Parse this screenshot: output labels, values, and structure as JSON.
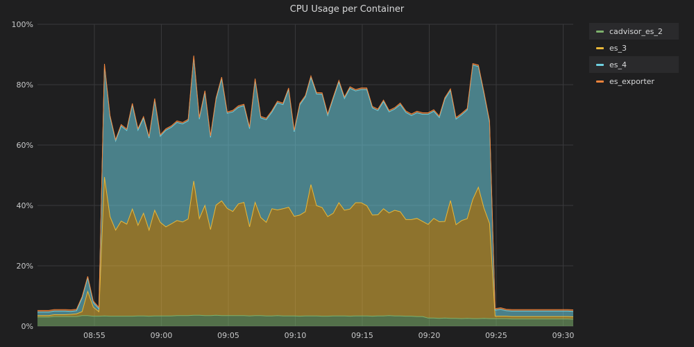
{
  "panel": {
    "title": "CPU Usage per Container"
  },
  "chart_data": {
    "type": "area",
    "stacked": true,
    "title": "CPU Usage per Container",
    "xlabel": "",
    "ylabel": "",
    "y_unit": "%",
    "ylim": [
      0,
      100
    ],
    "yticks": [
      "0%",
      "20%",
      "40%",
      "60%",
      "80%",
      "100%"
    ],
    "xlim": [
      "08:50:45",
      "09:30:45"
    ],
    "xticks": [
      "08:55",
      "09:00",
      "09:05",
      "09:10",
      "09:15",
      "09:20",
      "09:25",
      "09:30"
    ],
    "grid": true,
    "legend": "right",
    "time_step_seconds": 25,
    "x": [
      "08:50:45",
      "08:51:10",
      "08:51:35",
      "08:52:00",
      "08:52:25",
      "08:52:50",
      "08:53:15",
      "08:53:40",
      "08:54:05",
      "08:54:30",
      "08:54:55",
      "08:55:20",
      "08:55:45",
      "08:56:10",
      "08:56:35",
      "08:57:00",
      "08:57:25",
      "08:57:50",
      "08:58:15",
      "08:58:40",
      "08:59:05",
      "08:59:30",
      "08:59:55",
      "09:00:20",
      "09:00:45",
      "09:01:10",
      "09:01:35",
      "09:02:00",
      "09:02:25",
      "09:02:50",
      "09:03:15",
      "09:03:40",
      "09:04:05",
      "09:04:30",
      "09:04:55",
      "09:05:20",
      "09:05:45",
      "09:06:10",
      "09:06:35",
      "09:07:00",
      "09:07:25",
      "09:07:50",
      "09:08:15",
      "09:08:40",
      "09:09:05",
      "09:09:30",
      "09:09:55",
      "09:10:20",
      "09:10:45",
      "09:11:10",
      "09:11:35",
      "09:12:00",
      "09:12:25",
      "09:12:50",
      "09:13:15",
      "09:13:40",
      "09:14:05",
      "09:14:30",
      "09:14:55",
      "09:15:20",
      "09:15:45",
      "09:16:10",
      "09:16:35",
      "09:17:00",
      "09:17:25",
      "09:17:50",
      "09:18:15",
      "09:18:40",
      "09:19:05",
      "09:19:30",
      "09:19:55",
      "09:20:20",
      "09:20:45",
      "09:21:10",
      "09:21:35",
      "09:22:00",
      "09:22:25",
      "09:22:50",
      "09:23:15",
      "09:23:40",
      "09:24:05",
      "09:24:30",
      "09:24:55",
      "09:25:20",
      "09:25:45",
      "09:26:10",
      "09:26:35",
      "09:27:00",
      "09:27:25",
      "09:27:50",
      "09:28:15",
      "09:28:40",
      "09:29:05",
      "09:29:30",
      "09:29:55",
      "09:30:20",
      "09:30:45"
    ],
    "series": [
      {
        "name": "cadvisor_es_2",
        "color": "#7eb26d",
        "values": [
          3.0,
          3.0,
          3.0,
          3.2,
          3.2,
          3.2,
          3.2,
          3.2,
          3.5,
          3.5,
          3.3,
          3.3,
          3.4,
          3.3,
          3.3,
          3.3,
          3.3,
          3.3,
          3.4,
          3.4,
          3.3,
          3.4,
          3.4,
          3.4,
          3.4,
          3.5,
          3.5,
          3.5,
          3.6,
          3.6,
          3.5,
          3.5,
          3.6,
          3.5,
          3.5,
          3.5,
          3.5,
          3.5,
          3.4,
          3.5,
          3.5,
          3.4,
          3.4,
          3.5,
          3.4,
          3.4,
          3.4,
          3.3,
          3.4,
          3.4,
          3.4,
          3.3,
          3.3,
          3.4,
          3.4,
          3.4,
          3.3,
          3.4,
          3.4,
          3.4,
          3.3,
          3.4,
          3.4,
          3.5,
          3.4,
          3.4,
          3.3,
          3.3,
          3.2,
          3.2,
          2.7,
          2.7,
          2.6,
          2.7,
          2.6,
          2.6,
          2.5,
          2.6,
          2.5,
          2.5,
          2.6,
          2.5,
          2.5,
          2.5,
          2.5,
          2.4,
          2.4,
          2.4,
          2.4,
          2.4,
          2.4,
          2.4,
          2.4,
          2.4,
          2.4,
          2.4,
          2.3
        ]
      },
      {
        "name": "es_3",
        "color": "#eab839",
        "values": [
          0.5,
          0.5,
          0.5,
          0.6,
          0.6,
          0.6,
          0.7,
          0.9,
          1.3,
          8.0,
          3.0,
          1.5,
          46.0,
          33.0,
          28.5,
          31.5,
          30.5,
          35.5,
          30.0,
          34.0,
          28.5,
          35.0,
          31.0,
          29.5,
          30.5,
          31.5,
          31.0,
          32.0,
          44.5,
          32.0,
          36.5,
          28.5,
          36.5,
          38.0,
          35.5,
          34.5,
          37.0,
          37.5,
          29.5,
          37.5,
          32.5,
          31.0,
          35.5,
          35.0,
          35.5,
          36.0,
          33.0,
          33.5,
          34.5,
          43.5,
          36.5,
          36.0,
          33.0,
          34.0,
          37.5,
          35.0,
          35.5,
          37.5,
          37.5,
          36.5,
          33.5,
          33.5,
          35.5,
          34.0,
          35.0,
          34.5,
          32.0,
          32.0,
          32.5,
          31.5,
          31.0,
          33.0,
          32.0,
          32.0,
          39.0,
          31.0,
          32.5,
          33.0,
          39.5,
          43.5,
          36.5,
          31.5,
          0.8,
          0.8,
          0.8,
          0.8,
          0.8,
          0.8,
          0.8,
          0.8,
          0.8,
          0.8,
          0.8,
          0.8,
          0.8,
          0.8,
          0.8
        ]
      },
      {
        "name": "es_4",
        "color": "#6ed0e0",
        "values": [
          1.2,
          1.2,
          1.2,
          1.2,
          1.2,
          1.2,
          1.0,
          1.0,
          4.5,
          4.5,
          1.5,
          1.0,
          37.0,
          33.0,
          29.5,
          31.5,
          31.0,
          34.5,
          31.5,
          31.5,
          30.5,
          36.5,
          28.5,
          32.0,
          32.0,
          32.5,
          32.5,
          32.5,
          41.0,
          33.0,
          37.5,
          30.5,
          35.0,
          40.5,
          31.5,
          33.0,
          32.0,
          32.0,
          32.5,
          40.5,
          33.0,
          34.0,
          32.0,
          35.5,
          34.5,
          39.0,
          28.0,
          36.5,
          38.0,
          35.5,
          37.0,
          37.5,
          33.5,
          38.0,
          40.0,
          37.0,
          40.0,
          37.0,
          37.5,
          38.5,
          35.5,
          34.5,
          35.5,
          33.5,
          33.5,
          35.5,
          35.5,
          34.5,
          35.0,
          35.5,
          36.5,
          35.5,
          34.5,
          40.5,
          36.5,
          35.0,
          35.0,
          36.0,
          44.5,
          40.0,
          38.0,
          33.5,
          2.0,
          2.3,
          1.8,
          1.8,
          1.8,
          1.8,
          1.8,
          1.8,
          1.8,
          1.8,
          1.8,
          1.8,
          1.8,
          1.8,
          1.8
        ]
      },
      {
        "name": "es_exporter",
        "color": "#ef843c",
        "values": [
          0.5,
          0.5,
          0.5,
          0.5,
          0.5,
          0.5,
          0.5,
          0.5,
          0.5,
          0.5,
          0.5,
          0.5,
          0.5,
          0.5,
          0.5,
          0.5,
          0.5,
          0.5,
          0.5,
          0.5,
          0.5,
          0.5,
          0.5,
          0.5,
          0.5,
          0.5,
          0.5,
          0.5,
          0.5,
          0.5,
          0.5,
          0.5,
          0.5,
          0.5,
          0.5,
          0.5,
          0.5,
          0.5,
          0.5,
          0.5,
          0.5,
          0.5,
          0.5,
          0.5,
          0.5,
          0.5,
          0.5,
          0.5,
          0.5,
          0.5,
          0.5,
          0.5,
          0.5,
          0.5,
          0.5,
          0.5,
          0.5,
          0.5,
          0.5,
          0.5,
          0.5,
          0.5,
          0.5,
          0.5,
          0.5,
          0.5,
          0.5,
          0.5,
          0.5,
          0.5,
          0.5,
          0.5,
          0.5,
          0.5,
          0.5,
          0.5,
          0.5,
          0.5,
          0.5,
          0.5,
          0.5,
          0.5,
          0.5,
          0.5,
          0.5,
          0.5,
          0.5,
          0.5,
          0.5,
          0.5,
          0.5,
          0.5,
          0.5,
          0.5,
          0.5,
          0.5,
          0.5
        ]
      }
    ]
  }
}
